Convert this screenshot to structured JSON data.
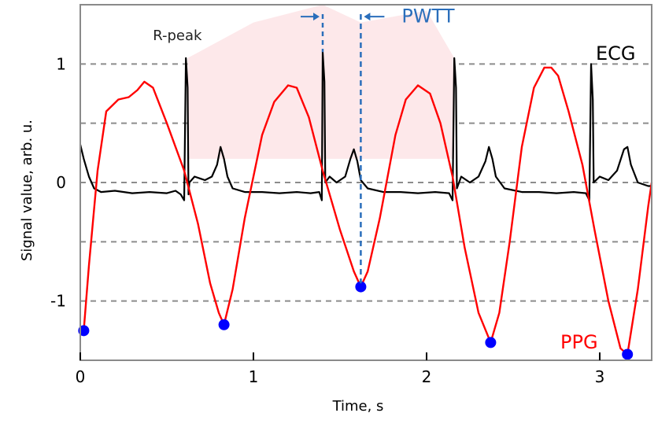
{
  "chart_data": {
    "type": "line",
    "xlabel": "Time, s",
    "ylabel": "Signal value, arb. u.",
    "xlim": [
      0,
      3.3
    ],
    "ylim": [
      -1.5,
      1.5
    ],
    "x_ticks": [
      0,
      1,
      2,
      3
    ],
    "y_ticks": [
      1,
      0,
      -1
    ],
    "grid": "horizontal dashed",
    "series": [
      {
        "name": "ECG",
        "color": "#000000",
        "points": [
          [
            0.0,
            0.32
          ],
          [
            0.02,
            0.2
          ],
          [
            0.05,
            0.05
          ],
          [
            0.08,
            -0.05
          ],
          [
            0.12,
            -0.08
          ],
          [
            0.2,
            -0.07
          ],
          [
            0.3,
            -0.09
          ],
          [
            0.4,
            -0.08
          ],
          [
            0.5,
            -0.09
          ],
          [
            0.55,
            -0.07
          ],
          [
            0.58,
            -0.1
          ],
          [
            0.6,
            -0.15
          ],
          [
            0.61,
            1.05
          ],
          [
            0.62,
            0.8
          ],
          [
            0.625,
            -0.1
          ],
          [
            0.63,
            0.0
          ],
          [
            0.66,
            0.05
          ],
          [
            0.72,
            0.02
          ],
          [
            0.76,
            0.05
          ],
          [
            0.79,
            0.15
          ],
          [
            0.81,
            0.3
          ],
          [
            0.83,
            0.2
          ],
          [
            0.85,
            0.05
          ],
          [
            0.88,
            -0.05
          ],
          [
            0.95,
            -0.08
          ],
          [
            1.05,
            -0.08
          ],
          [
            1.15,
            -0.09
          ],
          [
            1.25,
            -0.08
          ],
          [
            1.33,
            -0.09
          ],
          [
            1.38,
            -0.08
          ],
          [
            1.395,
            -0.15
          ],
          [
            1.4,
            1.1
          ],
          [
            1.41,
            0.85
          ],
          [
            1.415,
            0.0
          ],
          [
            1.44,
            0.05
          ],
          [
            1.48,
            0.0
          ],
          [
            1.53,
            0.05
          ],
          [
            1.56,
            0.2
          ],
          [
            1.58,
            0.28
          ],
          [
            1.6,
            0.18
          ],
          [
            1.62,
            0.02
          ],
          [
            1.66,
            -0.05
          ],
          [
            1.75,
            -0.08
          ],
          [
            1.85,
            -0.08
          ],
          [
            1.95,
            -0.09
          ],
          [
            2.05,
            -0.08
          ],
          [
            2.13,
            -0.09
          ],
          [
            2.15,
            -0.15
          ],
          [
            2.16,
            1.05
          ],
          [
            2.17,
            0.8
          ],
          [
            2.175,
            -0.05
          ],
          [
            2.2,
            0.05
          ],
          [
            2.25,
            0.0
          ],
          [
            2.3,
            0.05
          ],
          [
            2.34,
            0.18
          ],
          [
            2.36,
            0.3
          ],
          [
            2.38,
            0.2
          ],
          [
            2.4,
            0.05
          ],
          [
            2.45,
            -0.05
          ],
          [
            2.55,
            -0.08
          ],
          [
            2.65,
            -0.08
          ],
          [
            2.75,
            -0.09
          ],
          [
            2.85,
            -0.08
          ],
          [
            2.92,
            -0.09
          ],
          [
            2.94,
            -0.15
          ],
          [
            2.95,
            1.0
          ],
          [
            2.96,
            0.7
          ],
          [
            2.965,
            0.0
          ],
          [
            3.0,
            0.05
          ],
          [
            3.05,
            0.02
          ],
          [
            3.1,
            0.1
          ],
          [
            3.14,
            0.28
          ],
          [
            3.16,
            0.3
          ],
          [
            3.18,
            0.15
          ],
          [
            3.22,
            0.0
          ],
          [
            3.28,
            -0.03
          ],
          [
            3.3,
            -0.03
          ]
        ]
      },
      {
        "name": "PPG",
        "color": "#ff0000",
        "points": [
          [
            0.02,
            -1.25
          ],
          [
            0.05,
            -0.7
          ],
          [
            0.1,
            0.1
          ],
          [
            0.15,
            0.6
          ],
          [
            0.22,
            0.7
          ],
          [
            0.28,
            0.72
          ],
          [
            0.33,
            0.78
          ],
          [
            0.37,
            0.85
          ],
          [
            0.42,
            0.8
          ],
          [
            0.5,
            0.5
          ],
          [
            0.6,
            0.1
          ],
          [
            0.68,
            -0.35
          ],
          [
            0.75,
            -0.85
          ],
          [
            0.8,
            -1.1
          ],
          [
            0.83,
            -1.2
          ],
          [
            0.88,
            -0.9
          ],
          [
            0.95,
            -0.3
          ],
          [
            1.05,
            0.4
          ],
          [
            1.12,
            0.68
          ],
          [
            1.2,
            0.82
          ],
          [
            1.25,
            0.8
          ],
          [
            1.32,
            0.55
          ],
          [
            1.4,
            0.1
          ],
          [
            1.5,
            -0.4
          ],
          [
            1.58,
            -0.75
          ],
          [
            1.62,
            -0.88
          ],
          [
            1.66,
            -0.75
          ],
          [
            1.73,
            -0.3
          ],
          [
            1.82,
            0.4
          ],
          [
            1.88,
            0.7
          ],
          [
            1.95,
            0.82
          ],
          [
            2.02,
            0.75
          ],
          [
            2.08,
            0.5
          ],
          [
            2.15,
            0.05
          ],
          [
            2.22,
            -0.55
          ],
          [
            2.3,
            -1.1
          ],
          [
            2.37,
            -1.35
          ],
          [
            2.42,
            -1.1
          ],
          [
            2.48,
            -0.5
          ],
          [
            2.55,
            0.3
          ],
          [
            2.62,
            0.8
          ],
          [
            2.68,
            0.97
          ],
          [
            2.72,
            0.97
          ],
          [
            2.76,
            0.9
          ],
          [
            2.82,
            0.6
          ],
          [
            2.9,
            0.15
          ],
          [
            2.97,
            -0.4
          ],
          [
            3.05,
            -1.0
          ],
          [
            3.12,
            -1.4
          ],
          [
            3.16,
            -1.45
          ],
          [
            3.22,
            -0.9
          ],
          [
            3.28,
            -0.2
          ],
          [
            3.3,
            0.0
          ]
        ]
      }
    ],
    "markers": {
      "series": "PPG",
      "color": "#0000ff",
      "points": [
        [
          0.02,
          -1.25
        ],
        [
          0.83,
          -1.2
        ],
        [
          1.62,
          -0.88
        ],
        [
          2.37,
          -1.35
        ],
        [
          3.16,
          -1.45
        ]
      ]
    },
    "annotations": {
      "r_peak": {
        "text": "R-peak",
        "x": 0.61,
        "y": 1.05
      },
      "pwtt": {
        "text": "PWTT",
        "x_start": 1.4,
        "x_end": 1.62
      },
      "ecg_label": {
        "text": "ECG",
        "color": "#000000"
      },
      "ppg_label": {
        "text": "PPG",
        "color": "#ff0000"
      }
    },
    "shading": {
      "color": "#fde8ea",
      "points": [
        [
          0.62,
          1.05
        ],
        [
          1.0,
          1.35
        ],
        [
          1.4,
          1.5
        ],
        [
          1.62,
          1.35
        ],
        [
          2.0,
          1.45
        ],
        [
          2.16,
          1.05
        ]
      ]
    }
  }
}
